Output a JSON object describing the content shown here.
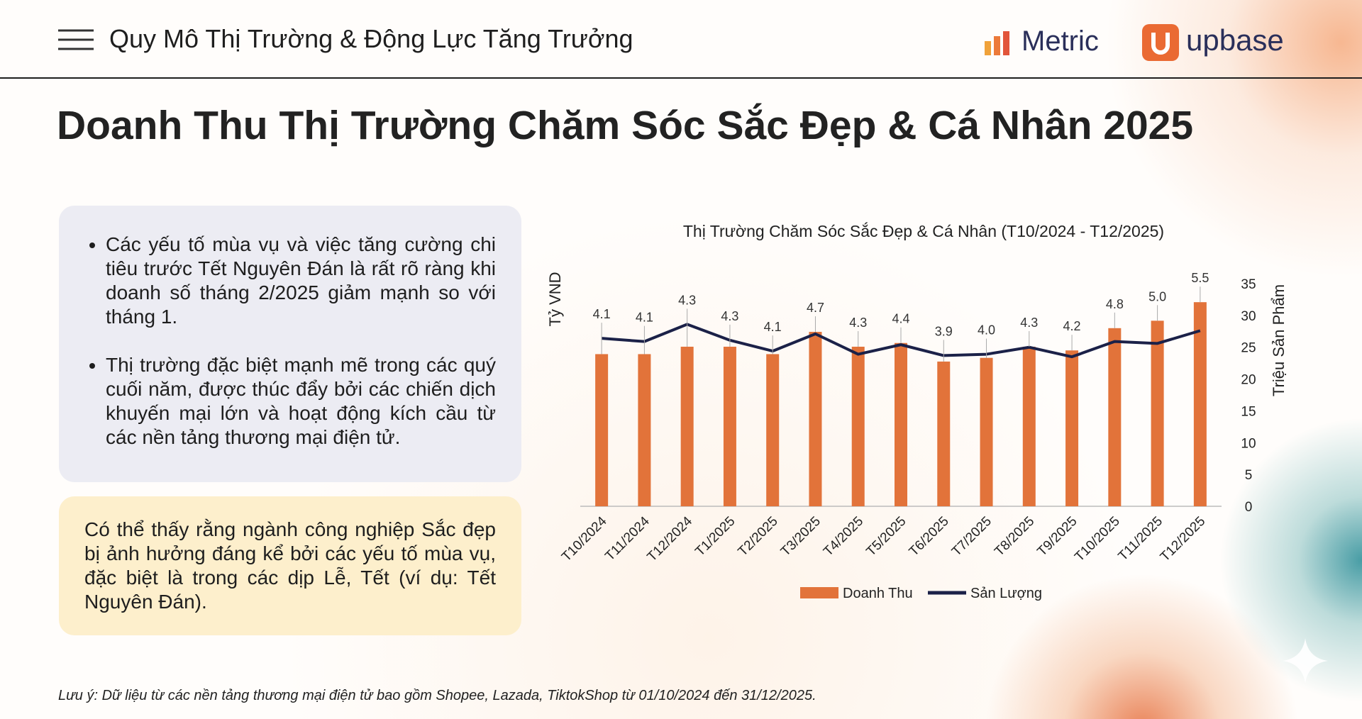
{
  "header": {
    "title": "Quy Mô Thị Trường & Động Lực Tăng Trưởng",
    "logos": [
      "Metric",
      "upbase"
    ]
  },
  "title": "Doanh Thu Thị Trường Chăm Sóc Sắc Đẹp & Cá Nhân 2025",
  "bullets": [
    "Các yếu tố mùa vụ và việc tăng cường chi tiêu trước Tết Nguyên Đán là rất rõ ràng khi doanh số tháng 2/2025 giảm mạnh so với tháng 1.",
    "Thị trường đặc biệt mạnh mẽ trong các quý cuối năm, được thúc đẩy bởi các chiến dịch khuyến mại lớn và hoạt động kích cầu từ các nền tảng thương mại điện tử."
  ],
  "callout": "Có thể thấy rằng ngành công nghiệp Sắc đẹp bị ảnh hưởng đáng kể bởi các yếu tố mùa vụ, đặc biệt là trong các dịp Lễ, Tết (ví dụ: Tết Nguyên Đán).",
  "footnote": "Lưu ý: Dữ liệu từ các nền tảng thương mại điện tử bao gồm Shopee, Lazada, TiktokShop từ 01/10/2024 đến 31/12/2025.",
  "chart_data": {
    "type": "combo",
    "title": "Thị Trường Chăm Sóc Sắc Đẹp & Cá Nhân (T10/2024 - T12/2025)",
    "ylabel": "Tỷ VND",
    "y2label": "Triệu Sản Phẩm",
    "categories": [
      "T10/2024",
      "T11/2024",
      "T12/2024",
      "T1/2025",
      "T2/2025",
      "T3/2025",
      "T4/2025",
      "T5/2025",
      "T6/2025",
      "T7/2025",
      "T8/2025",
      "T9/2025",
      "T10/2025",
      "T11/2025",
      "T12/2025"
    ],
    "series": [
      {
        "name": "Doanh Thu",
        "type": "bar",
        "color": "#e2733a",
        "values": [
          4.1,
          4.1,
          4.3,
          4.3,
          4.1,
          4.7,
          4.3,
          4.4,
          3.9,
          4.0,
          4.3,
          4.2,
          4.8,
          5.0,
          5.5
        ],
        "value_labels": [
          "4.1",
          "4.1",
          "4.3",
          "4.3",
          "4.1",
          "4.7",
          "4.3",
          "4.4",
          "3.9",
          "4.0",
          "4.3",
          "4.2",
          "4.8",
          "5.0",
          "5.5"
        ]
      },
      {
        "name": "Sản Lượng",
        "type": "line",
        "axis": "y2",
        "color": "#1b2148",
        "values": [
          26.4,
          25.9,
          28.6,
          26.1,
          24.4,
          27.1,
          23.9,
          25.4,
          23.7,
          23.9,
          25.0,
          23.5,
          25.9,
          25.6,
          27.6
        ]
      }
    ],
    "ylim": [
      0,
      6
    ],
    "y2lim": [
      0,
      35
    ],
    "y2ticks": [
      0,
      5,
      10,
      15,
      20,
      25,
      30,
      35
    ],
    "grid": false,
    "legend": "bottom"
  }
}
